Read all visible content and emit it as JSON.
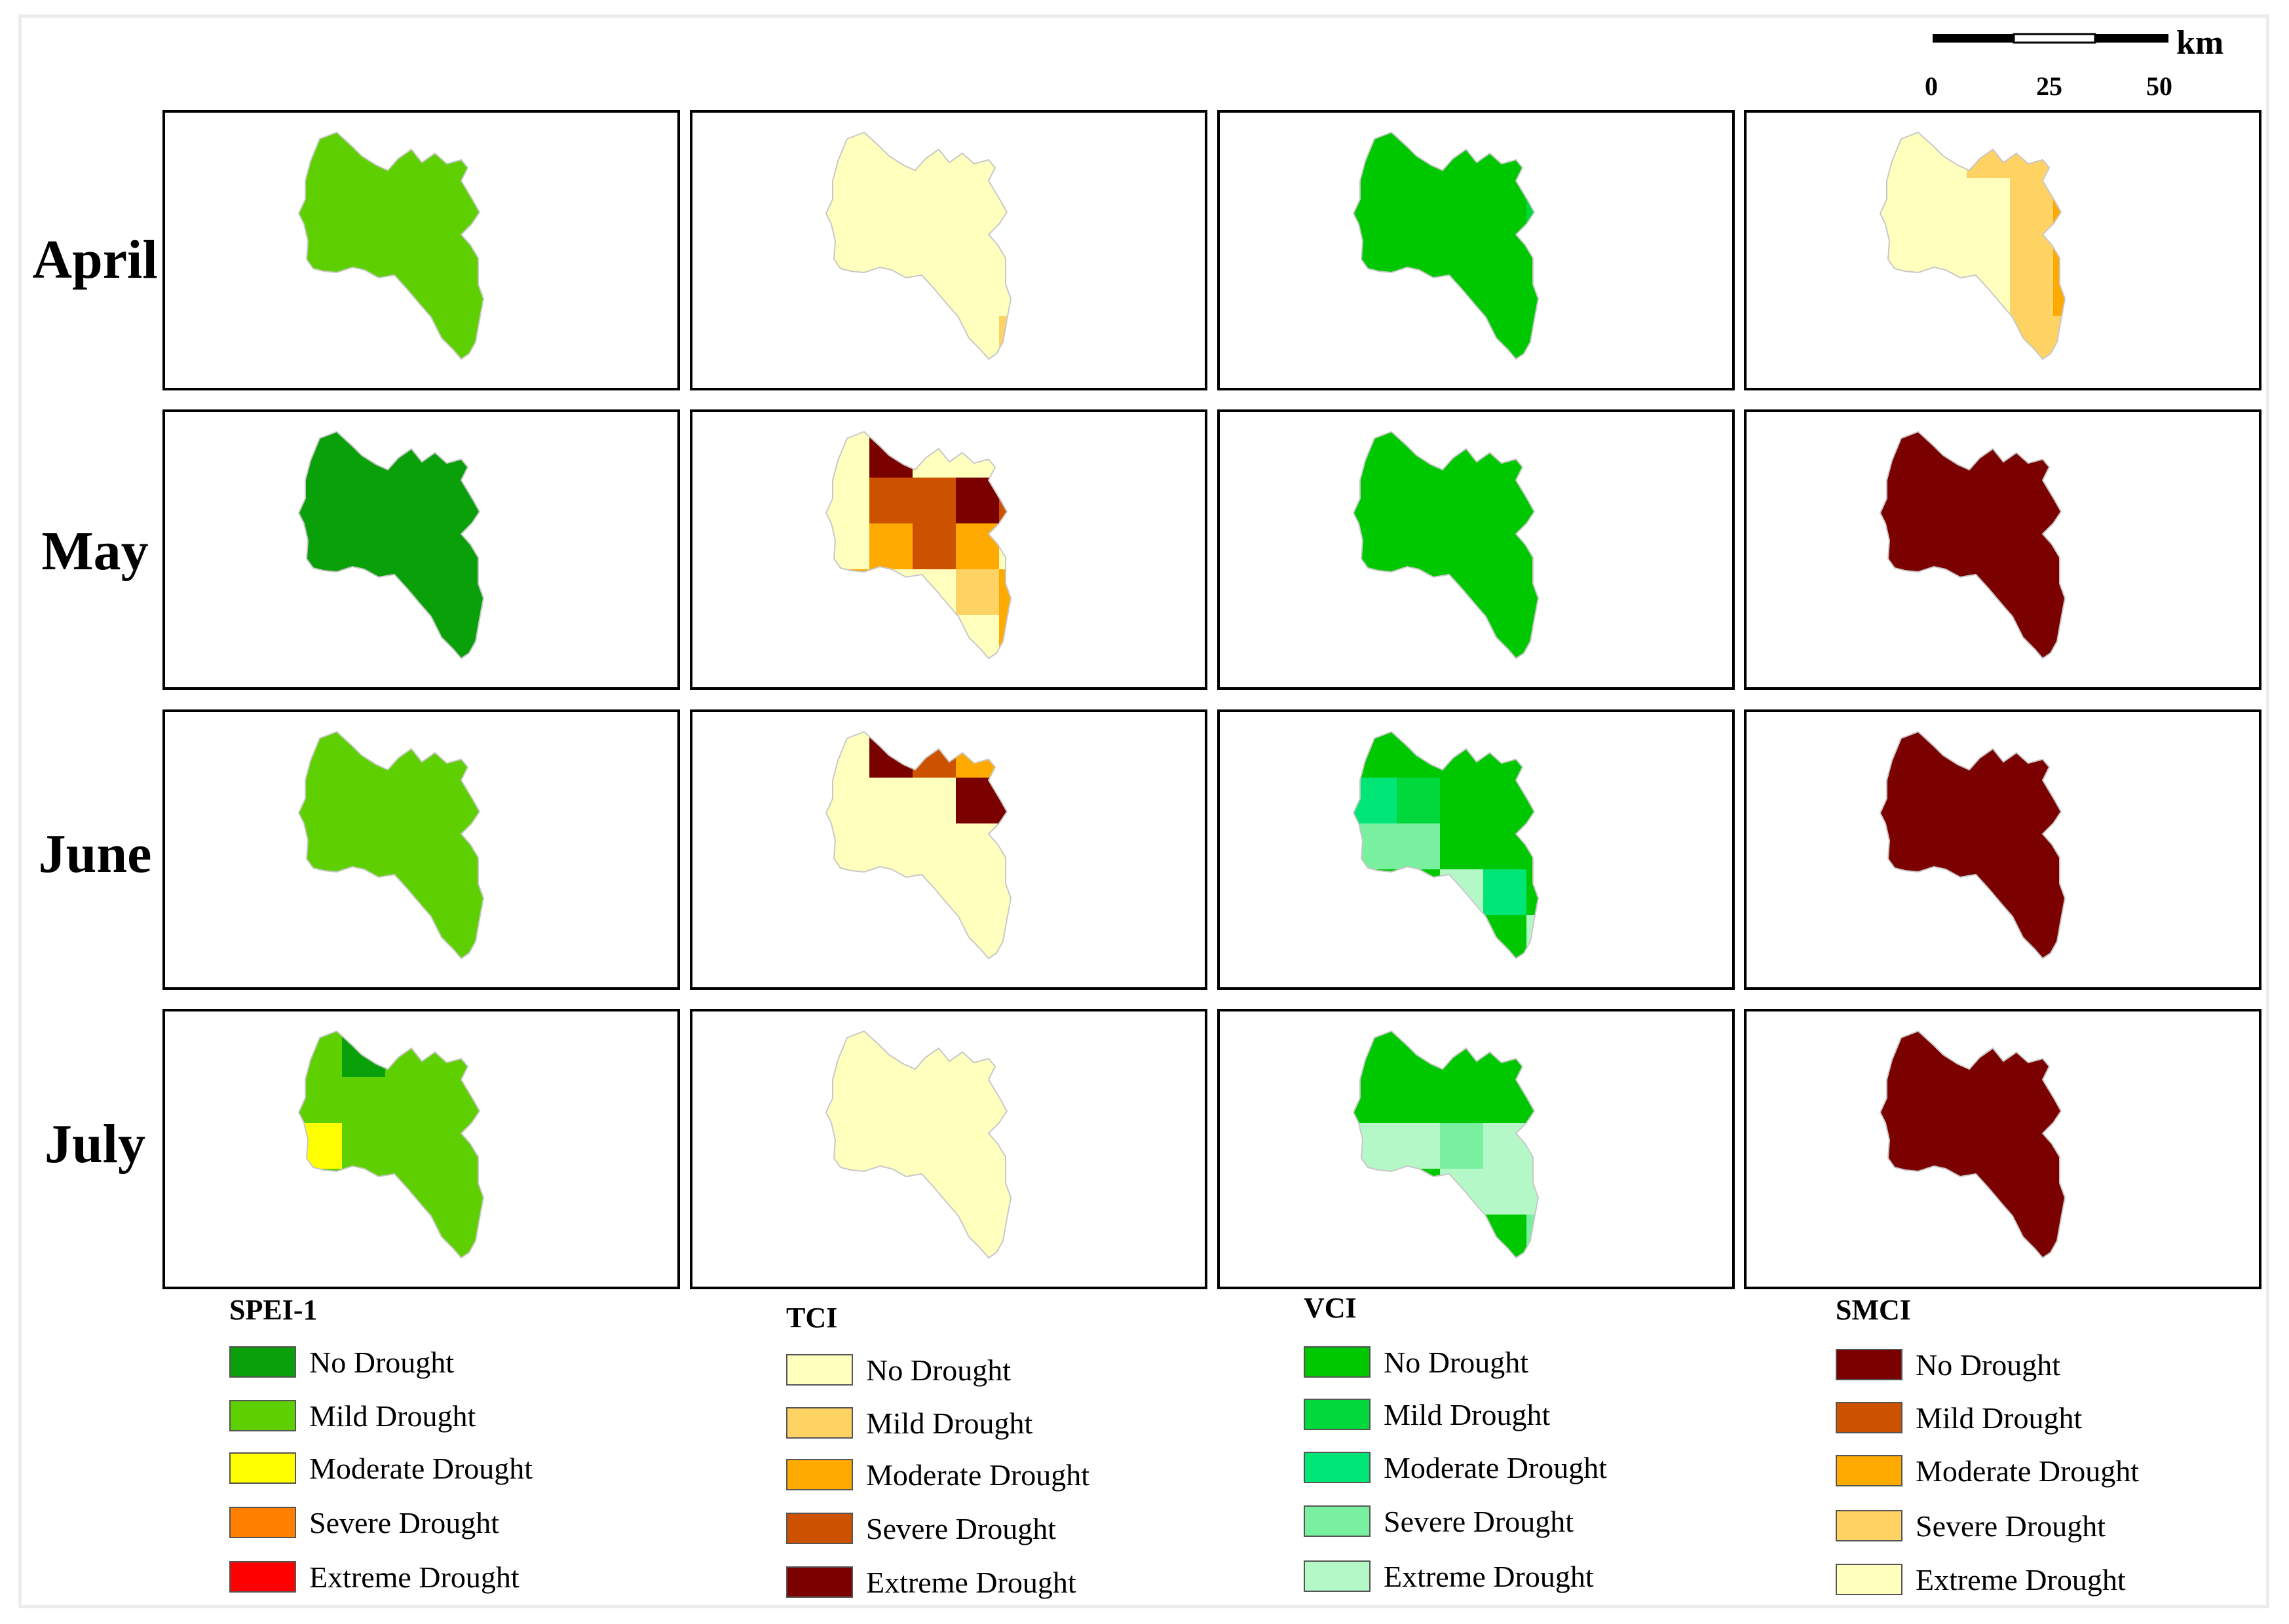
{
  "scale": {
    "unit": "km",
    "ticks": [
      "0",
      "25",
      "50"
    ]
  },
  "rows": [
    "April",
    "May",
    "June",
    "July"
  ],
  "indices": [
    {
      "name": "SPEI-1",
      "legend": [
        {
          "label": "No Drought",
          "color": "#0aa00a"
        },
        {
          "label": "Mild Drought",
          "color": "#5ecf00"
        },
        {
          "label": "Moderate Drought",
          "color": "#ffff00"
        },
        {
          "label": "Severe Drought",
          "color": "#ff7f00"
        },
        {
          "label": "Extreme Drought",
          "color": "#ff0000"
        }
      ]
    },
    {
      "name": "TCI",
      "legend": [
        {
          "label": "No Drought",
          "color": "#ffffbe"
        },
        {
          "label": "Mild Drought",
          "color": "#ffd264"
        },
        {
          "label": "Moderate Drought",
          "color": "#ffaa00"
        },
        {
          "label": "Severe Drought",
          "color": "#cc5200"
        },
        {
          "label": "Extreme Drought",
          "color": "#7b0000"
        }
      ]
    },
    {
      "name": "VCI",
      "legend": [
        {
          "label": "No Drought",
          "color": "#00c800"
        },
        {
          "label": "Mild Drought",
          "color": "#00d83c"
        },
        {
          "label": "Moderate Drought",
          "color": "#00e676"
        },
        {
          "label": "Severe Drought",
          "color": "#78f0a0"
        },
        {
          "label": "Extreme Drought",
          "color": "#b4f8c8"
        }
      ]
    },
    {
      "name": "SMCI",
      "legend": [
        {
          "label": "No Drought",
          "color": "#7b0000"
        },
        {
          "label": "Mild Drought",
          "color": "#cc5200"
        },
        {
          "label": "Moderate Drought",
          "color": "#ffaa00"
        },
        {
          "label": "Severe Drought",
          "color": "#ffd264"
        },
        {
          "label": "Extreme Drought",
          "color": "#ffffbe"
        }
      ]
    }
  ],
  "maps": [
    [
      {
        "base": "#5ecf00",
        "patches": []
      },
      {
        "base": "#ffffbe",
        "patches": [
          {
            "col": 4,
            "row": 4,
            "color": "#ffd264"
          }
        ]
      },
      {
        "base": "#00c800",
        "patches": [
          {
            "col": 4,
            "row": 1,
            "color": "#00d83c"
          }
        ]
      },
      {
        "base": "#ffffbe",
        "patches": [
          {
            "col": 2,
            "row": 0,
            "color": "#ffd264"
          },
          {
            "col": 3,
            "row": 0,
            "color": "#ffd264"
          },
          {
            "col": 3,
            "row": 1,
            "color": "#ffd264"
          },
          {
            "col": 3,
            "row": 2,
            "color": "#ffd264"
          },
          {
            "col": 3,
            "row": 3,
            "color": "#ffd264"
          },
          {
            "col": 3,
            "row": 4,
            "color": "#ffd264"
          },
          {
            "col": 4,
            "row": 1,
            "color": "#ffaa00"
          },
          {
            "col": 4,
            "row": 2,
            "color": "#ffaa00"
          },
          {
            "col": 4,
            "row": 3,
            "color": "#ffaa00"
          },
          {
            "col": 4,
            "row": 4,
            "color": "#ffd264"
          }
        ]
      }
    ],
    [
      {
        "base": "#0aa00a",
        "patches": []
      },
      {
        "base": "#ffffbe",
        "patches": [
          {
            "col": 1,
            "row": 0,
            "color": "#7b0000"
          },
          {
            "col": 1,
            "row": 1,
            "color": "#cc5200"
          },
          {
            "col": 1,
            "row": 2,
            "color": "#ffaa00"
          },
          {
            "col": 2,
            "row": 1,
            "color": "#cc5200"
          },
          {
            "col": 2,
            "row": 2,
            "color": "#cc5200"
          },
          {
            "col": 3,
            "row": 1,
            "color": "#7b0000"
          },
          {
            "col": 3,
            "row": 2,
            "color": "#ffaa00"
          },
          {
            "col": 3,
            "row": 3,
            "color": "#ffd264"
          },
          {
            "col": 4,
            "row": 1,
            "color": "#cc5200"
          },
          {
            "col": 4,
            "row": 3,
            "color": "#ffaa00"
          },
          {
            "col": 4,
            "row": 4,
            "color": "#ffaa00"
          },
          {
            "col": 0,
            "row": 3,
            "color": "#ffaa00"
          }
        ]
      },
      {
        "base": "#00c800",
        "patches": []
      },
      {
        "base": "#7b0000",
        "patches": []
      }
    ],
    [
      {
        "base": "#5ecf00",
        "patches": []
      },
      {
        "base": "#ffffbe",
        "patches": [
          {
            "col": 1,
            "row": 0,
            "color": "#7b0000"
          },
          {
            "col": 2,
            "row": 0,
            "color": "#cc5200"
          },
          {
            "col": 3,
            "row": 0,
            "color": "#ffaa00"
          },
          {
            "col": 3,
            "row": 1,
            "color": "#7b0000"
          },
          {
            "col": 4,
            "row": 1,
            "color": "#7b0000"
          }
        ]
      },
      {
        "base": "#00c800",
        "patches": [
          {
            "col": 0,
            "row": 1,
            "color": "#00e676"
          },
          {
            "col": 1,
            "row": 1,
            "color": "#00d83c"
          },
          {
            "col": 0,
            "row": 2,
            "color": "#78f0a0"
          },
          {
            "col": 1,
            "row": 2,
            "color": "#78f0a0"
          },
          {
            "col": 2,
            "row": 3,
            "color": "#b4f8c8"
          },
          {
            "col": 3,
            "row": 3,
            "color": "#00e676"
          },
          {
            "col": 4,
            "row": 4,
            "color": "#b4f8c8"
          }
        ]
      },
      {
        "base": "#7b0000",
        "patches": []
      }
    ],
    [
      {
        "base": "#5ecf00",
        "patches": [
          {
            "col": 1,
            "row": 0,
            "color": "#0aa00a"
          },
          {
            "col": 0,
            "row": 2,
            "color": "#ffff00"
          }
        ]
      },
      {
        "base": "#ffffbe",
        "patches": []
      },
      {
        "base": "#00c800",
        "patches": [
          {
            "col": 0,
            "row": 2,
            "color": "#b4f8c8"
          },
          {
            "col": 1,
            "row": 2,
            "color": "#b4f8c8"
          },
          {
            "col": 0,
            "row": 3,
            "color": "#b4f8c8"
          },
          {
            "col": 2,
            "row": 2,
            "color": "#78f0a0"
          },
          {
            "col": 3,
            "row": 2,
            "color": "#b4f8c8"
          },
          {
            "col": 4,
            "row": 2,
            "color": "#b4f8c8"
          },
          {
            "col": 2,
            "row": 3,
            "color": "#b4f8c8"
          },
          {
            "col": 3,
            "row": 3,
            "color": "#b4f8c8"
          },
          {
            "col": 4,
            "row": 3,
            "color": "#b4f8c8"
          },
          {
            "col": 4,
            "row": 4,
            "color": "#78f0a0"
          }
        ]
      },
      {
        "base": "#7b0000",
        "patches": []
      }
    ]
  ]
}
